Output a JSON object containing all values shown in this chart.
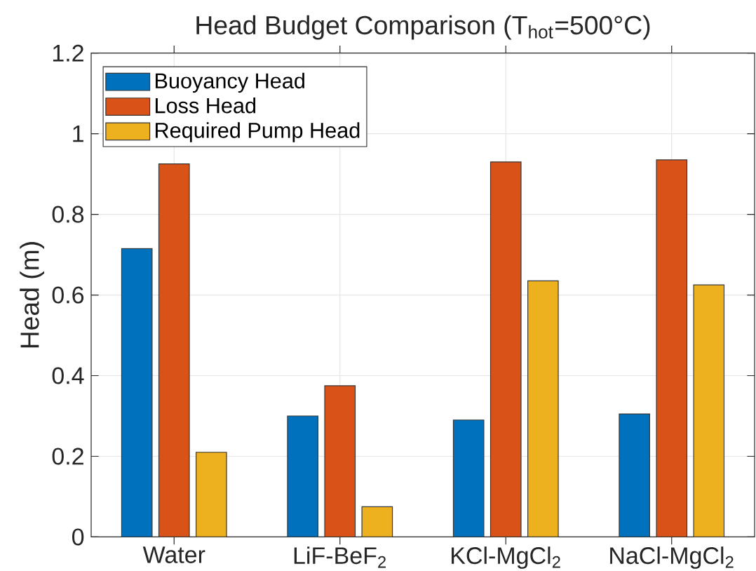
{
  "chart_data": {
    "type": "bar",
    "title": "Head Budget Comparison (T$_{hot}$=500°C)",
    "ylabel": "Head (m)",
    "categories": [
      "Water",
      "LiF-BeF$_{2}$",
      "KCl-MgCl$_{2}$",
      "NaCl-MgCl$_{2}$"
    ],
    "series": [
      {
        "name": "Buoyancy Head",
        "color": "#0072bd",
        "values": [
          0.715,
          0.3,
          0.29,
          0.305
        ]
      },
      {
        "name": "Loss Head",
        "color": "#d95319",
        "values": [
          0.925,
          0.375,
          0.93,
          0.935
        ]
      },
      {
        "name": "Required Pump Head",
        "color": "#edb120",
        "values": [
          0.21,
          0.075,
          0.635,
          0.625
        ]
      }
    ],
    "ylim": [
      0,
      1.2
    ],
    "yticks": [
      0,
      0.2,
      0.4,
      0.6,
      0.8,
      1,
      1.2
    ],
    "grid": true,
    "legend": "top left"
  }
}
